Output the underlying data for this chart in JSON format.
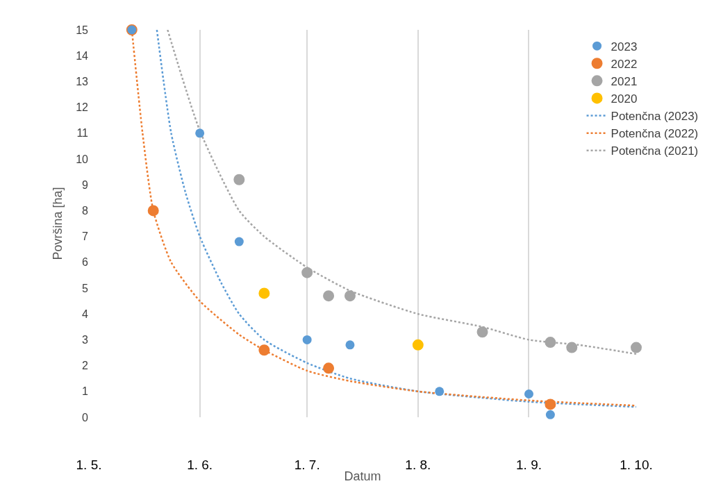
{
  "chart_data": {
    "type": "scatter",
    "xlabel": "Datum",
    "ylabel": "Površina [ha]",
    "xlim": [
      "--05-01",
      "--10-01"
    ],
    "xticks": [
      {
        "value": "--05-01",
        "label": "1. 5."
      },
      {
        "value": "--06-01",
        "label": "1. 6."
      },
      {
        "value": "--07-01",
        "label": "1. 7."
      },
      {
        "value": "--08-01",
        "label": "1. 8."
      },
      {
        "value": "--09-01",
        "label": "1. 9."
      },
      {
        "value": "--10-01",
        "label": "1. 10."
      }
    ],
    "ylim": [
      0,
      15
    ],
    "yticks": [
      0,
      1,
      2,
      3,
      4,
      5,
      6,
      7,
      8,
      9,
      10,
      11,
      12,
      13,
      14,
      15
    ],
    "grid": "x",
    "legend": "top right",
    "series": [
      {
        "name": "2023",
        "marker": "circle",
        "color": "#5b9bd5",
        "x": [
          "--05-13",
          "--06-01",
          "--06-12",
          "--07-01",
          "--07-13",
          "--08-07",
          "--09-01",
          "--09-07"
        ],
        "values": [
          15,
          11,
          6.8,
          3.0,
          2.8,
          1.0,
          0.9,
          0.1
        ]
      },
      {
        "name": "2022",
        "marker": "circle",
        "color": "#ed7d31",
        "x": [
          "--05-13",
          "--05-19",
          "--06-19",
          "--07-07",
          "--09-07"
        ],
        "values": [
          15,
          8.0,
          2.6,
          1.9,
          0.5
        ]
      },
      {
        "name": "2021",
        "marker": "circle",
        "color": "#a5a5a5",
        "x": [
          "--06-12",
          "--07-01",
          "--07-07",
          "--07-13",
          "--08-19",
          "--09-07",
          "--09-13",
          "--10-01"
        ],
        "values": [
          9.2,
          5.6,
          4.7,
          4.7,
          3.3,
          2.9,
          2.7,
          2.7
        ]
      },
      {
        "name": "2020",
        "marker": "circle",
        "color": "#ffc000",
        "x": [
          "--06-19",
          "--08-01"
        ],
        "values": [
          4.8,
          2.8
        ]
      },
      {
        "name": "Potenčna (2023)",
        "type": "line",
        "line_style": "dotted",
        "color": "#5b9bd5",
        "x": [
          "--05-20",
          "--05-24",
          "--05-28",
          "--06-01",
          "--06-07",
          "--06-12",
          "--06-19",
          "--07-01",
          "--07-13",
          "--08-01",
          "--08-19",
          "--09-01",
          "--09-15",
          "--10-01"
        ],
        "values": [
          15,
          11,
          8.7,
          7.0,
          5.2,
          4.0,
          3.0,
          2.1,
          1.5,
          1.0,
          0.75,
          0.6,
          0.5,
          0.4
        ]
      },
      {
        "name": "Potenčna (2022)",
        "type": "line",
        "line_style": "dotted",
        "color": "#ed7d31",
        "x": [
          "--05-13",
          "--05-16",
          "--05-19",
          "--05-24",
          "--06-01",
          "--06-12",
          "--06-19",
          "--07-01",
          "--07-13",
          "--08-01",
          "--09-01",
          "--10-01"
        ],
        "values": [
          15,
          11,
          8.0,
          6.0,
          4.5,
          3.2,
          2.6,
          1.8,
          1.4,
          1.0,
          0.65,
          0.45
        ]
      },
      {
        "name": "Potenčna (2021)",
        "type": "line",
        "line_style": "dotted",
        "color": "#a5a5a5",
        "x": [
          "--05-23",
          "--06-01",
          "--06-12",
          "--06-19",
          "--07-01",
          "--07-13",
          "--08-01",
          "--08-19",
          "--09-01",
          "--09-15",
          "--10-01"
        ],
        "values": [
          15,
          11.1,
          8.0,
          7.0,
          5.8,
          4.9,
          4.0,
          3.5,
          3.0,
          2.8,
          2.45
        ]
      }
    ]
  }
}
